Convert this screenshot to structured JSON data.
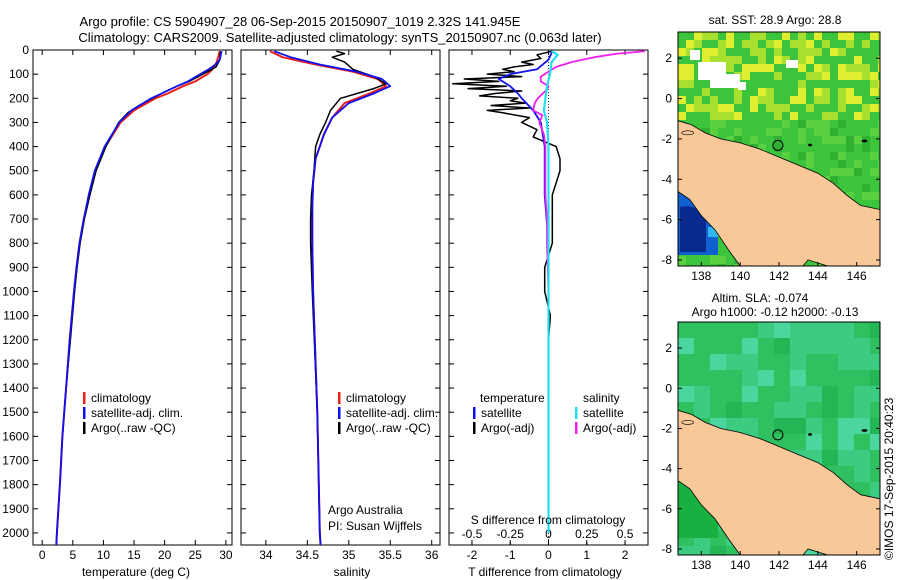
{
  "header": {
    "line1": "Argo profile: CS 5904907_28 06-Sep-2015 20150907_1019 2.32S 141.945E",
    "line2": "Climatology: CARS2009. Satellite-adjusted climatology: synTS_20150907.nc (0.063d later)"
  },
  "footer": {
    "credit": "©IMOS 17-Sep-2015 20:40:23"
  },
  "colors": {
    "red": "#e8201c",
    "blue": "#1010f0",
    "black": "#000000",
    "cyan": "#20e0f0",
    "magenta": "#f020f0",
    "land": "#f8c898",
    "sea_green": "#30c060",
    "sea_light": "#70d8d0",
    "deep_blue": "#1040b0"
  },
  "chart_data": [
    {
      "id": "temperature",
      "type": "line",
      "xlabel": "temperature (deg C)",
      "xlim": [
        -1.5,
        31
      ],
      "xticks": [
        0,
        5,
        10,
        15,
        20,
        25,
        30
      ],
      "ylim": [
        0,
        2050
      ],
      "yticks": [
        0,
        100,
        200,
        300,
        400,
        500,
        600,
        700,
        800,
        900,
        1000,
        1100,
        1200,
        1300,
        1400,
        1500,
        1600,
        1700,
        1800,
        1900,
        2000
      ],
      "legend": [
        "climatology",
        "satellite-adj. clim.",
        "Argo(..raw -QC)"
      ],
      "series": [
        {
          "name": "climatology",
          "color": "red",
          "depth": [
            5,
            50,
            80,
            100,
            130,
            150,
            180,
            200,
            250,
            300,
            400,
            500,
            600,
            700,
            800,
            900,
            1000,
            1200,
            1400,
            1600,
            1800,
            2000,
            2050
          ],
          "values": [
            29.0,
            28.5,
            27.8,
            27.0,
            25.0,
            23.0,
            20.5,
            18.5,
            15.0,
            12.8,
            10.3,
            8.7,
            7.7,
            6.8,
            6.1,
            5.6,
            5.2,
            4.5,
            3.9,
            3.3,
            2.9,
            2.4,
            2.3
          ]
        },
        {
          "name": "satellite-adj. clim.",
          "color": "blue",
          "depth": [
            5,
            40,
            60,
            80,
            100,
            130,
            150,
            180,
            200,
            250,
            300,
            400,
            500,
            600,
            700,
            800,
            900,
            1000,
            1200,
            1400,
            1600,
            1800,
            2000,
            2050
          ],
          "values": [
            29.3,
            29.0,
            28.3,
            27.2,
            25.8,
            23.8,
            22.0,
            19.5,
            17.8,
            14.6,
            12.6,
            10.2,
            8.6,
            7.6,
            6.8,
            6.1,
            5.6,
            5.2,
            4.5,
            3.9,
            3.3,
            2.9,
            2.4,
            2.3
          ]
        },
        {
          "name": "Argo(..raw -QC)",
          "color": "black",
          "depth": [
            5,
            40,
            70,
            90,
            110,
            130,
            150,
            170,
            200,
            230,
            260,
            300,
            400,
            500,
            600,
            700,
            800,
            900,
            1000,
            1200,
            1400,
            1600,
            1800,
            2000,
            2050
          ],
          "values": [
            29.1,
            29.0,
            28.4,
            27.0,
            25.5,
            24.0,
            22.0,
            20.3,
            18.0,
            15.8,
            14.0,
            12.5,
            10.4,
            8.8,
            7.8,
            6.9,
            6.2,
            5.7,
            5.3,
            4.6,
            3.9,
            3.3,
            2.9,
            2.4,
            2.3
          ]
        }
      ]
    },
    {
      "id": "salinity",
      "type": "line",
      "xlabel": "salinity",
      "xlim": [
        33.7,
        36.1
      ],
      "xticks": [
        34,
        34.5,
        35,
        35.5,
        36
      ],
      "ylim": [
        0,
        2050
      ],
      "legend": [
        "climatology",
        "satellite-adj. clim.",
        "Argo(..raw -QC)"
      ],
      "annotation": [
        "Argo Australia",
        "PI: Susan Wijffels"
      ],
      "series": [
        {
          "name": "climatology",
          "color": "red",
          "depth": [
            5,
            30,
            60,
            90,
            120,
            150,
            180,
            220,
            280,
            350,
            450,
            550,
            650,
            800,
            1000,
            1500,
            2000,
            2050
          ],
          "values": [
            34.05,
            34.2,
            34.6,
            35.05,
            35.35,
            35.45,
            35.25,
            34.95,
            34.8,
            34.7,
            34.6,
            34.57,
            34.56,
            34.56,
            34.57,
            34.62,
            34.65,
            34.66
          ]
        },
        {
          "name": "satellite-adj. clim.",
          "color": "blue",
          "depth": [
            5,
            30,
            60,
            90,
            120,
            150,
            180,
            220,
            280,
            350,
            450,
            550,
            650,
            800,
            1000,
            1500,
            2000,
            2050
          ],
          "values": [
            34.1,
            34.3,
            34.65,
            35.1,
            35.4,
            35.5,
            35.3,
            35.0,
            34.8,
            34.7,
            34.6,
            34.57,
            34.56,
            34.56,
            34.57,
            34.62,
            34.65,
            34.66
          ]
        },
        {
          "name": "Argo(..raw -QC)",
          "color": "black",
          "depth": [
            5,
            15,
            30,
            50,
            80,
            110,
            140,
            160,
            200,
            250,
            300,
            350,
            400,
            500,
            600,
            700,
            800,
            1000,
            1500,
            2000,
            2050
          ],
          "values": [
            34.85,
            34.95,
            34.8,
            34.95,
            35.05,
            35.3,
            35.45,
            35.3,
            34.9,
            34.78,
            34.72,
            34.65,
            34.6,
            34.58,
            34.55,
            34.54,
            34.54,
            34.56,
            34.62,
            34.65,
            34.66
          ]
        }
      ]
    },
    {
      "id": "difference",
      "type": "line",
      "xlabel": "T difference from climatology",
      "x2label": "S difference from climatology",
      "xlim": [
        -2.6,
        2.6
      ],
      "xticks": [
        -2,
        -1,
        0,
        1,
        2
      ],
      "s_xticks": [
        -0.5,
        -0.25,
        0,
        0.25,
        0.5
      ],
      "s_xticklabels": [
        "-0.5",
        "-0.25",
        "0",
        "0.25",
        "0.5"
      ],
      "ylim": [
        0,
        2050
      ],
      "legend_titles": [
        "temperature",
        "salinity"
      ],
      "legend": [
        "satellite",
        "Argo(-adj)",
        "satellite",
        "Argo(-adj)"
      ],
      "series": [
        {
          "name": "T satellite",
          "color": "blue",
          "depth": [
            5,
            40,
            80,
            100,
            120,
            150,
            180,
            200,
            250,
            300,
            400,
            500,
            600,
            800,
            1000,
            1500,
            2000
          ],
          "values": [
            0.1,
            0.0,
            -0.3,
            -1.0,
            -1.3,
            -1.0,
            -0.8,
            -0.7,
            -0.4,
            -0.2,
            -0.1,
            -0.1,
            -0.1,
            0.0,
            0.0,
            0.0,
            0.0
          ]
        },
        {
          "name": "T Argo(-adj)",
          "color": "black",
          "depth": [
            5,
            20,
            35,
            50,
            60,
            70,
            80,
            90,
            100,
            110,
            120,
            130,
            140,
            150,
            160,
            170,
            180,
            190,
            200,
            210,
            220,
            230,
            240,
            250,
            260,
            280,
            300,
            330,
            360,
            400,
            450,
            500,
            550,
            600,
            700,
            800,
            900,
            1000,
            1100,
            1200,
            1400,
            1600,
            1800,
            2000
          ],
          "values": [
            0.1,
            -0.3,
            -0.2,
            -0.7,
            -0.4,
            -0.9,
            -1.2,
            -0.9,
            -1.6,
            -0.7,
            -2.2,
            -1.3,
            -2.5,
            -1.1,
            -2.1,
            -0.7,
            -1.4,
            -1.8,
            -0.8,
            -1.0,
            -0.6,
            -1.5,
            -0.5,
            -1.6,
            -1.2,
            -0.5,
            -0.7,
            -0.3,
            -0.4,
            0.2,
            0.3,
            0.3,
            0.2,
            0.1,
            0.1,
            0.1,
            -0.1,
            -0.1,
            0.05,
            0.0,
            0.0,
            0.0,
            0.0,
            0.0
          ]
        },
        {
          "name": "S satellite",
          "color": "cyan",
          "depth": [
            5,
            20,
            50,
            100,
            150,
            200,
            250,
            300,
            400,
            500,
            600,
            800,
            1000,
            1500,
            2000
          ],
          "values": [
            0.02,
            0.06,
            0.02,
            0.01,
            -0.01,
            -0.02,
            -0.03,
            -0.01,
            0.0,
            0.0,
            0.0,
            0.0,
            0.0,
            0.0,
            0.0
          ]
        },
        {
          "name": "S Argo(-adj)",
          "color": "magenta",
          "depth": [
            5,
            15,
            30,
            50,
            70,
            90,
            110,
            130,
            150,
            170,
            200,
            220,
            250,
            270,
            300,
            350,
            400,
            500,
            600,
            700,
            800,
            1000,
            1500,
            2000
          ],
          "values": [
            0.63,
            0.45,
            0.3,
            0.15,
            0.05,
            0.0,
            -0.05,
            -0.05,
            0.0,
            -0.02,
            -0.07,
            -0.09,
            -0.1,
            -0.04,
            -0.06,
            -0.03,
            -0.02,
            -0.02,
            -0.02,
            -0.01,
            -0.01,
            0.0,
            0.0,
            0.0
          ]
        }
      ]
    },
    {
      "id": "sst_map",
      "type": "heatmap",
      "title": "sat. SST: 28.9 Argo: 28.8",
      "xlim": [
        136.8,
        147.2
      ],
      "ylim": [
        -8.3,
        3.3
      ],
      "xticks": [
        138,
        140,
        142,
        144,
        146
      ],
      "yticks": [
        -8,
        -6,
        -4,
        -2,
        0,
        2
      ],
      "float_position": {
        "lon": 141.945,
        "lat": -2.32
      }
    },
    {
      "id": "sla_map",
      "type": "heatmap",
      "title": "Altim. SLA: -0.074",
      "subtitle": "Argo h1000: -0.12 h2000: -0.13",
      "xlim": [
        136.8,
        147.2
      ],
      "ylim": [
        -8.3,
        3.3
      ],
      "xticks": [
        138,
        140,
        142,
        144,
        146
      ],
      "yticks": [
        -8,
        -6,
        -4,
        -2,
        0,
        2
      ],
      "float_position": {
        "lon": 141.945,
        "lat": -2.32
      }
    }
  ]
}
